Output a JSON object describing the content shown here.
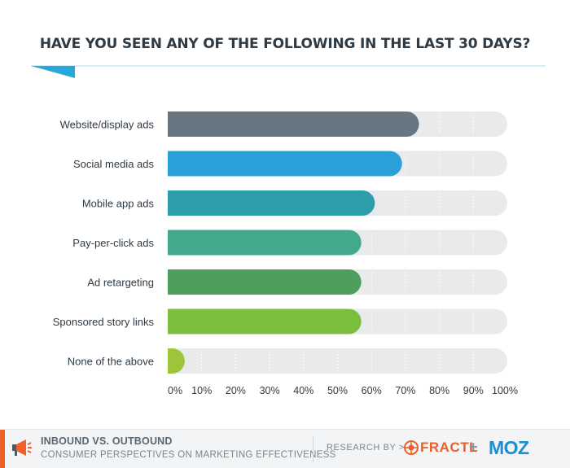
{
  "header": {
    "title": "HAVE YOU SEEN ANY OF THE FOLLOWING IN THE LAST 30 DAYS?"
  },
  "chart_data": {
    "type": "bar",
    "orientation": "horizontal",
    "title": "HAVE YOU SEEN ANY OF THE FOLLOWING IN THE LAST 30 DAYS?",
    "categories": [
      "Website/display ads",
      "Social media ads",
      "Mobile app ads",
      "Pay-per-click ads",
      "Ad retargeting",
      "Sponsored story links",
      "None of the above"
    ],
    "values": [
      74,
      69,
      61,
      57,
      57,
      57,
      5
    ],
    "bar_colors": [
      "#687681",
      "#2a9fd8",
      "#2f9eab",
      "#42a98d",
      "#4f9f5c",
      "#7cbf3f",
      "#9cc53a"
    ],
    "track_color": "#e8eaeb",
    "xlim": [
      0,
      100
    ],
    "x_ticks": [
      "0%",
      "10%",
      "20%",
      "30%",
      "40%",
      "50%",
      "60%",
      "70%",
      "80%",
      "90%",
      "100%"
    ],
    "grid": true,
    "xlabel": "",
    "ylabel": ""
  },
  "footer": {
    "title": "INBOUND VS. OUTBOUND",
    "subtitle": "CONSUMER PERSPECTIVES ON MARKETING EFFECTIVENESS",
    "research_by": "RESEARCH BY  >",
    "brand1": "FRACTL",
    "plus": "+",
    "brand2": "MOZ",
    "accent_color": "#f0602a",
    "icons": [
      "megaphone-icon",
      "fractl-logo-icon"
    ]
  }
}
